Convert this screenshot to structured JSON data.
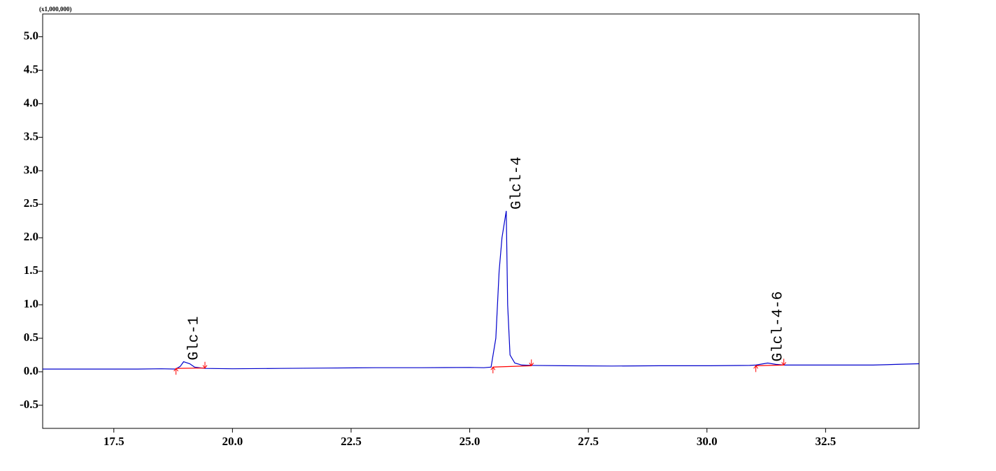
{
  "chart_data": {
    "type": "line",
    "y_unit": "(x1,000,000)",
    "xlim": [
      16.0,
      34.47
    ],
    "ylim": [
      -0.845,
      5.34
    ],
    "xticks": [
      17.5,
      {
        "value": 20,
        "label": "20.0"
      },
      22.5,
      {
        "value": 25,
        "label": "25.0"
      },
      27.5,
      {
        "value": 30,
        "label": "30.0"
      },
      32.5
    ],
    "yticks": [
      -0.5,
      {
        "value": 0,
        "label": "0.0"
      },
      0.5,
      {
        "value": 1,
        "label": "1.0"
      },
      1.5,
      {
        "value": 2,
        "label": "2.0"
      },
      2.5,
      {
        "value": 3,
        "label": "3.0"
      },
      3.5,
      {
        "value": 4,
        "label": "4.0"
      },
      4.5,
      {
        "value": 5,
        "label": "5.0"
      }
    ],
    "series": [
      {
        "color": "#0000cc",
        "x": [
          16.0,
          17.0,
          18.0,
          18.5,
          18.8,
          18.9,
          18.97,
          19.1,
          19.2,
          19.42,
          20.0,
          21.0,
          22.0,
          23.0,
          24.0,
          25.0,
          25.3,
          25.45,
          25.55,
          25.62,
          25.68,
          25.77,
          25.8,
          25.85,
          25.95,
          26.1,
          26.3,
          27.0,
          28.0,
          29.0,
          30.0,
          30.9,
          31.03,
          31.28,
          31.45,
          31.62,
          32.5,
          33.5,
          34.0,
          34.47
        ],
        "values": [
          0.04,
          0.04,
          0.04,
          0.045,
          0.04,
          0.08,
          0.15,
          0.12,
          0.07,
          0.05,
          0.045,
          0.05,
          0.055,
          0.06,
          0.06,
          0.065,
          0.06,
          0.07,
          0.5,
          1.5,
          2.0,
          2.4,
          1.0,
          0.25,
          0.13,
          0.1,
          0.095,
          0.09,
          0.085,
          0.09,
          0.09,
          0.095,
          0.1,
          0.13,
          0.11,
          0.1,
          0.1,
          0.1,
          0.11,
          0.12
        ]
      }
    ],
    "peaks": [
      {
        "label": "Glc-1",
        "rt": 18.97,
        "height": 0.15,
        "start": [
          18.81,
          0.05
        ],
        "end": [
          19.42,
          0.055
        ]
      },
      {
        "label": "Glcl-4",
        "rt": 25.77,
        "height": 2.4,
        "start": [
          25.49,
          0.07
        ],
        "end": [
          26.3,
          0.09
        ]
      },
      {
        "label": "Glcl-4-6",
        "rt": 31.28,
        "height": 0.13,
        "start": [
          31.03,
          0.09
        ],
        "end": [
          31.62,
          0.1
        ]
      }
    ],
    "baseline_color": "#ff0000"
  }
}
